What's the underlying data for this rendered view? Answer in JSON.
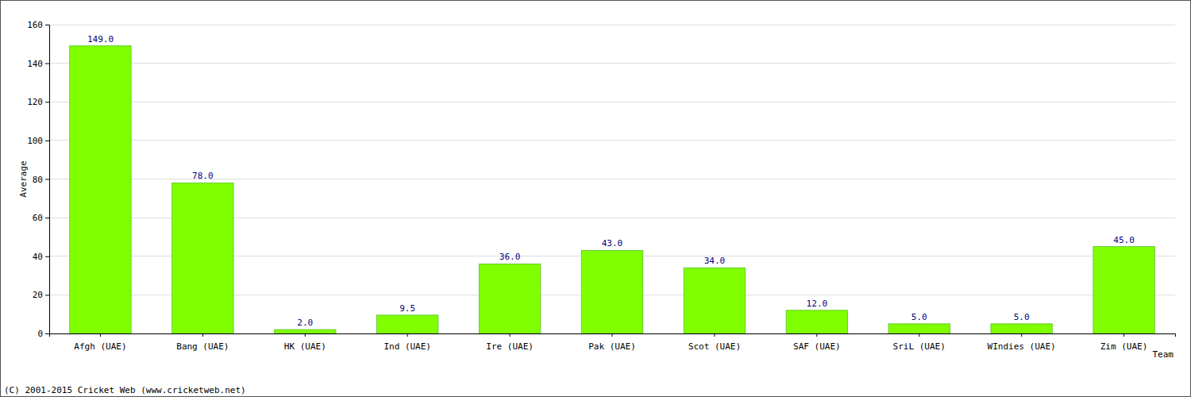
{
  "chart_data": {
    "type": "bar",
    "xlabel": "Team",
    "ylabel": "Average",
    "categories": [
      "Afgh (UAE)",
      "Bang (UAE)",
      "HK (UAE)",
      "Ind (UAE)",
      "Ire (UAE)",
      "Pak (UAE)",
      "Scot (UAE)",
      "SAF (UAE)",
      "SriL (UAE)",
      "WIndies (UAE)",
      "Zim (UAE)"
    ],
    "values": [
      149,
      78,
      2,
      9.5,
      36,
      43,
      34,
      12,
      5,
      5,
      45
    ],
    "value_labels": [
      "149.0",
      "78.0",
      "2.0",
      "9.5",
      "36.0",
      "43.0",
      "34.0",
      "12.0",
      "5.0",
      "5.0",
      "45.0"
    ],
    "color": "#80ff00",
    "data_labels": true,
    "ylim": [
      0,
      160
    ],
    "yticks": [
      0,
      20,
      40,
      60,
      80,
      100,
      120,
      140,
      160
    ],
    "grid": true,
    "annotations": [
      "(C) 2001-2015 Cricket Web (www.cricketweb.net)"
    ]
  }
}
